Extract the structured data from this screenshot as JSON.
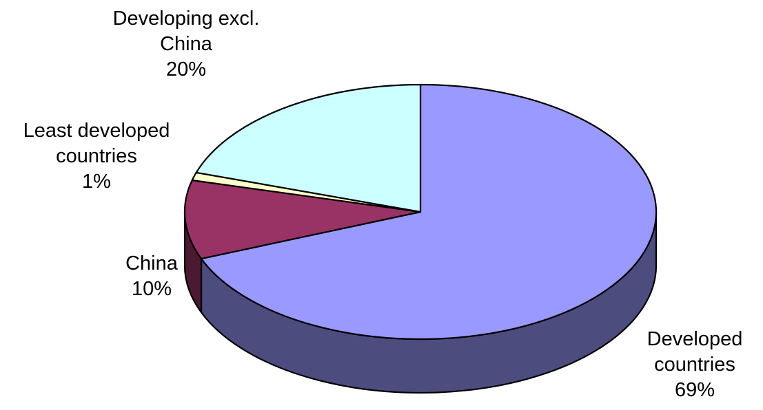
{
  "chart_data": {
    "type": "pie",
    "style": "3d",
    "title": "",
    "categories": [
      "Developed countries",
      "China",
      "Least developed countries",
      "Developing excl. China"
    ],
    "values": [
      69,
      10,
      1,
      20
    ],
    "labels": [
      {
        "name_lines": [
          "Developed",
          "countries"
        ],
        "value": "69%"
      },
      {
        "name_lines": [
          "China"
        ],
        "value": "10%"
      },
      {
        "name_lines": [
          "Least developed",
          "countries"
        ],
        "value": "1%"
      },
      {
        "name_lines": [
          "Developing excl.",
          "China"
        ],
        "value": "20%"
      }
    ],
    "colors": {
      "top": [
        "#9999ff",
        "#993366",
        "#ffffcc",
        "#ccffff"
      ],
      "side": [
        "#4c4c7f",
        "#4c1933",
        "#7f7f66",
        "#667f7f"
      ]
    },
    "legend": "none"
  }
}
